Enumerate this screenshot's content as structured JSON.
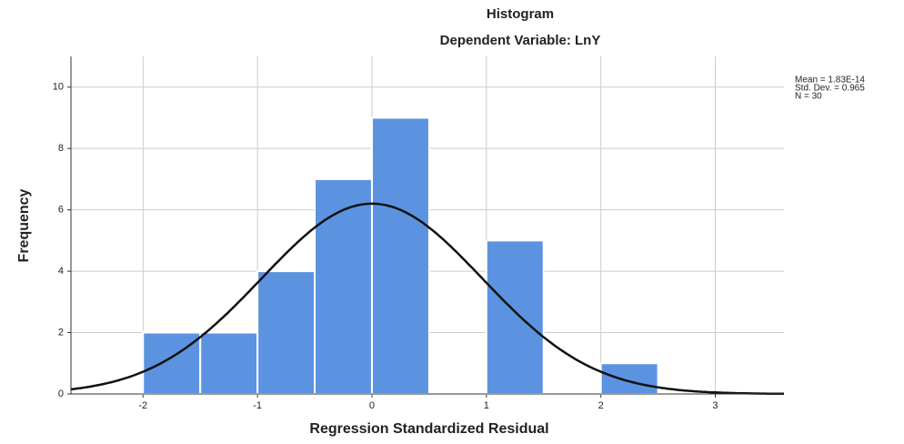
{
  "chart_data": {
    "type": "histogram",
    "title": "Histogram",
    "subtitle": "Dependent Variable: LnY",
    "x_label": "Regression Standardized Residual",
    "y_label": "Frequency",
    "bins": [
      -2,
      -1.5,
      -1,
      -0.5,
      0,
      0.5,
      1,
      1.5,
      2,
      2.5
    ],
    "values": [
      2,
      2,
      4,
      7,
      9,
      0,
      5,
      0,
      1
    ],
    "color": "#5b93e0",
    "xlim": [
      -2.63,
      3.6
    ],
    "xticks": [
      -2,
      -1,
      0,
      1,
      2,
      3
    ],
    "ylim": [
      0,
      11
    ],
    "yticks": [
      0,
      2,
      4,
      6,
      8,
      10
    ],
    "grid": true,
    "normal_curve": {
      "color": "#111111"
    },
    "stats": [
      {
        "value": 1.83e-14,
        "label": "Mean = 1.83E-14"
      },
      {
        "value": 0.965,
        "label": "Std. Dev. = 0.965"
      },
      {
        "value": 30,
        "label": "N = 30"
      }
    ]
  }
}
